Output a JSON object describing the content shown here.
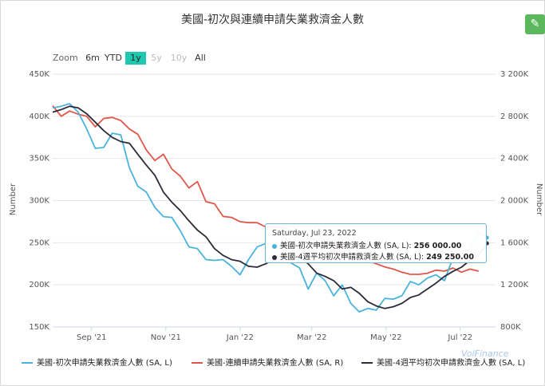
{
  "page": {
    "title": "美國-初次與連續申請失業救濟金人數",
    "edit_icon": "pencil-icon",
    "watermark": "VolFinance"
  },
  "zoom": {
    "label": "Zoom",
    "buttons": [
      "6m",
      "YTD",
      "1y",
      "5y",
      "10y",
      "All"
    ],
    "active": "1y",
    "disabled": [
      "5y",
      "10y"
    ]
  },
  "colors": {
    "initial": "#4ab3dc",
    "continuing": "#e0574a",
    "avg4w": "#2b2b3a",
    "active_zoom": "#1ec9b0"
  },
  "tooltip": {
    "date": "Saturday, Jul 23, 2022",
    "rows": [
      {
        "label": "美國-初次申請失業救濟金人數 (SA, L): ",
        "value": "256 000.00",
        "color": "#4ab3dc"
      },
      {
        "label": "美國-4週平均初次申請救濟金人數 (SA, L): ",
        "value": "249 250.00",
        "color": "#2b2b3a"
      }
    ]
  },
  "legend": [
    {
      "label": "美國-初次申請失業救濟金人數 (SA, L)",
      "color": "#4ab3dc"
    },
    {
      "label": "美國-連續申請失業救濟金人數 (SA, R)",
      "color": "#e0574a"
    },
    {
      "label": "美國-4週平均初次申請救濟金人數 (SA, L)",
      "color": "#2b2b3a"
    }
  ],
  "chart_data": {
    "type": "line",
    "x_tick_labels": [
      "Sep '21",
      "Nov '21",
      "Jan '22",
      "Mar '22",
      "May '22",
      "Jul '22"
    ],
    "y_left": {
      "label": "Number",
      "ticks": [
        "150K",
        "200K",
        "250K",
        "300K",
        "350K",
        "400K",
        "450K"
      ],
      "ylim": [
        150000,
        450000
      ]
    },
    "y_right": {
      "label": "Number",
      "ticks": [
        "800K",
        "1 200K",
        "1 600K",
        "2 000K",
        "2 400K",
        "2 800K",
        "3 200K"
      ],
      "ylim": [
        800000,
        3200000
      ]
    },
    "x_range": [
      "2021-07-31",
      "2022-07-30"
    ],
    "grid": true,
    "legend_position": "bottom",
    "series": [
      {
        "name": "美國-初次申請失業救濟金人數 (SA, L)",
        "axis": "left",
        "x": [
          "2021-07-31",
          "2021-08-07",
          "2021-08-14",
          "2021-08-21",
          "2021-08-28",
          "2021-09-04",
          "2021-09-11",
          "2021-09-18",
          "2021-09-25",
          "2021-10-02",
          "2021-10-09",
          "2021-10-16",
          "2021-10-23",
          "2021-10-30",
          "2021-11-06",
          "2021-11-13",
          "2021-11-20",
          "2021-11-27",
          "2021-12-04",
          "2021-12-11",
          "2021-12-18",
          "2021-12-25",
          "2022-01-01",
          "2022-01-08",
          "2022-01-15",
          "2022-01-22",
          "2022-01-29",
          "2022-02-05",
          "2022-02-12",
          "2022-02-19",
          "2022-02-26",
          "2022-03-05",
          "2022-03-12",
          "2022-03-19",
          "2022-03-26",
          "2022-04-02",
          "2022-04-09",
          "2022-04-16",
          "2022-04-23",
          "2022-04-30",
          "2022-05-07",
          "2022-05-14",
          "2022-05-21",
          "2022-05-28",
          "2022-06-04",
          "2022-06-11",
          "2022-06-18",
          "2022-06-25",
          "2022-07-02",
          "2022-07-09",
          "2022-07-16",
          "2022-07-23"
        ],
        "values": [
          410000,
          412000,
          415000,
          405000,
          385000,
          362000,
          363000,
          380000,
          378000,
          339000,
          317000,
          310000,
          292000,
          281000,
          280000,
          264000,
          245000,
          243000,
          230000,
          229000,
          230000,
          222000,
          212000,
          230000,
          245000,
          249000,
          247000,
          242000,
          226000,
          220000,
          195000,
          214000,
          205000,
          187000,
          200000,
          178000,
          168000,
          172000,
          170000,
          184000,
          183000,
          187000,
          204000,
          200000,
          208000,
          212000,
          205000,
          232000,
          231000,
          243000,
          262000,
          256000
        ]
      },
      {
        "name": "美國-連續申請失業救濟金人數 (SA, R)",
        "axis": "right",
        "x": [
          "2021-07-31",
          "2021-08-07",
          "2021-08-14",
          "2021-08-21",
          "2021-08-28",
          "2021-09-04",
          "2021-09-11",
          "2021-09-18",
          "2021-09-25",
          "2021-10-02",
          "2021-10-09",
          "2021-10-16",
          "2021-10-23",
          "2021-10-30",
          "2021-11-06",
          "2021-11-13",
          "2021-11-20",
          "2021-11-27",
          "2021-12-04",
          "2021-12-11",
          "2021-12-18",
          "2021-12-25",
          "2022-01-01",
          "2022-01-08",
          "2022-01-15",
          "2022-01-22",
          "2022-01-29",
          "2022-02-05",
          "2022-02-12",
          "2022-02-19",
          "2022-02-26",
          "2022-03-05",
          "2022-03-12",
          "2022-03-19",
          "2022-03-26",
          "2022-04-02",
          "2022-04-09",
          "2022-04-16",
          "2022-04-23",
          "2022-04-30",
          "2022-05-07",
          "2022-05-14",
          "2022-05-21",
          "2022-05-28",
          "2022-06-04",
          "2022-06-11",
          "2022-06-18",
          "2022-06-25",
          "2022-07-02",
          "2022-07-09",
          "2022-07-16"
        ],
        "values": [
          2900000,
          2800000,
          2850000,
          2820000,
          2800000,
          2700000,
          2780000,
          2790000,
          2760000,
          2680000,
          2630000,
          2480000,
          2380000,
          2440000,
          2300000,
          2230000,
          2120000,
          2180000,
          1990000,
          1970000,
          1850000,
          1840000,
          1800000,
          1790000,
          1790000,
          1750000,
          1750000,
          1740000,
          1720000,
          1690000,
          1660000,
          1620000,
          1580000,
          1530000,
          1500000,
          1480000,
          1460000,
          1430000,
          1400000,
          1370000,
          1350000,
          1320000,
          1300000,
          1300000,
          1310000,
          1340000,
          1330000,
          1360000,
          1320000,
          1350000,
          1330000
        ]
      },
      {
        "name": "美國-4週平均初次申請救濟金人數 (SA, L)",
        "axis": "left",
        "x": [
          "2021-07-31",
          "2021-08-07",
          "2021-08-14",
          "2021-08-21",
          "2021-08-28",
          "2021-09-04",
          "2021-09-11",
          "2021-09-18",
          "2021-09-25",
          "2021-10-02",
          "2021-10-09",
          "2021-10-16",
          "2021-10-23",
          "2021-10-30",
          "2021-11-06",
          "2021-11-13",
          "2021-11-20",
          "2021-11-27",
          "2021-12-04",
          "2021-12-11",
          "2021-12-18",
          "2021-12-25",
          "2022-01-01",
          "2022-01-08",
          "2022-01-15",
          "2022-01-22",
          "2022-01-29",
          "2022-02-05",
          "2022-02-12",
          "2022-02-19",
          "2022-02-26",
          "2022-03-05",
          "2022-03-12",
          "2022-03-19",
          "2022-03-26",
          "2022-04-02",
          "2022-04-09",
          "2022-04-16",
          "2022-04-23",
          "2022-04-30",
          "2022-05-07",
          "2022-05-14",
          "2022-05-21",
          "2022-05-28",
          "2022-06-04",
          "2022-06-11",
          "2022-06-18",
          "2022-06-25",
          "2022-07-02",
          "2022-07-09",
          "2022-07-16",
          "2022-07-23"
        ],
        "values": [
          405000,
          408000,
          412000,
          410000,
          403000,
          393000,
          383000,
          375000,
          370000,
          368000,
          355000,
          342000,
          330000,
          310000,
          298000,
          288000,
          276000,
          265000,
          257000,
          243000,
          235000,
          230000,
          228000,
          222000,
          221000,
          225000,
          230000,
          238000,
          238000,
          233000,
          225000,
          214000,
          210000,
          205000,
          195000,
          197000,
          190000,
          180000,
          175000,
          172000,
          174000,
          178000,
          185000,
          188000,
          195000,
          202000,
          210000,
          216000,
          221000,
          229000,
          235000,
          249250
        ]
      }
    ]
  }
}
